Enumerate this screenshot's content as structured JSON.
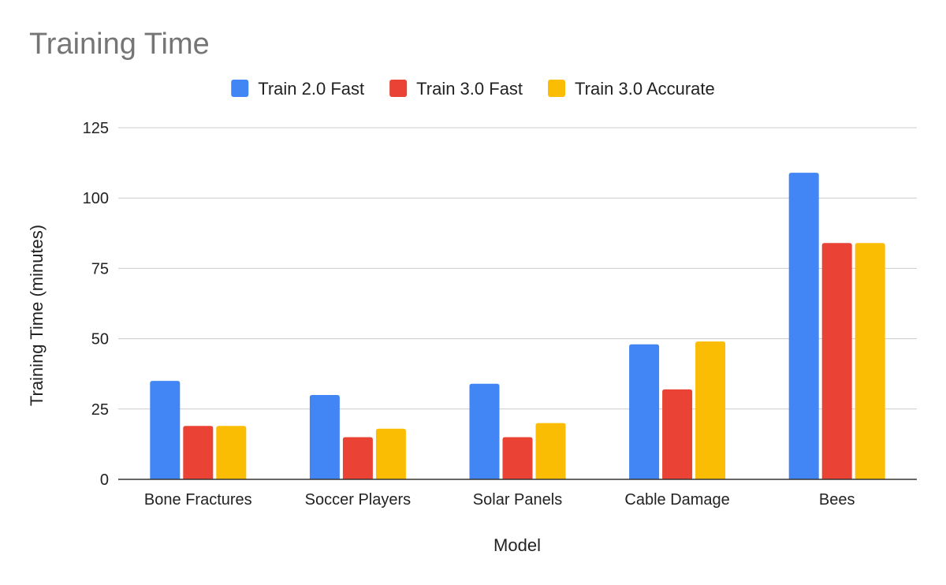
{
  "chart_data": {
    "type": "bar",
    "title": "Training Time",
    "xlabel": "Model",
    "ylabel": "Training Time (minutes)",
    "categories": [
      "Bone Fractures",
      "Soccer Players",
      "Solar Panels",
      "Cable Damage",
      "Bees"
    ],
    "series": [
      {
        "name": "Train 2.0 Fast",
        "color": "#4285f4",
        "values": [
          35,
          30,
          34,
          48,
          109
        ]
      },
      {
        "name": "Train 3.0 Fast",
        "color": "#ea4335",
        "values": [
          19,
          15,
          15,
          32,
          84
        ]
      },
      {
        "name": "Train 3.0 Accurate",
        "color": "#fbbc04",
        "values": [
          19,
          18,
          20,
          49,
          84
        ]
      }
    ],
    "ylim": [
      0,
      125
    ],
    "yticks": [
      0,
      25,
      50,
      75,
      100,
      125
    ],
    "grid": true,
    "legend": "top",
    "colors": {
      "gridline": "#cccccc",
      "axis": "#333333",
      "title": "#757575",
      "text": "#222222"
    }
  }
}
